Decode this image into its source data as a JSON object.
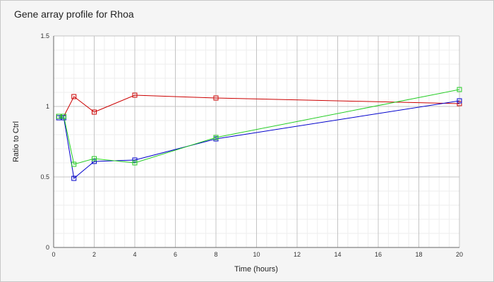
{
  "chart_data": {
    "type": "line",
    "title": "Gene array profile for Rhoa",
    "xlabel": "Time (hours)",
    "ylabel": "Ratio to Ctrl",
    "xlim": [
      0,
      20
    ],
    "ylim": [
      0,
      1.5
    ],
    "xticks": [
      0,
      2,
      4,
      6,
      8,
      10,
      12,
      14,
      16,
      18,
      20
    ],
    "yticks": [
      0,
      0.5,
      1,
      1.5
    ],
    "ytick_labels": [
      "0",
      "0.5",
      "1",
      "1.5"
    ],
    "grid": true,
    "series": [
      {
        "color": "#cc0000",
        "marker": "square",
        "x": [
          0.25,
          0.5,
          1,
          2,
          4,
          8,
          20
        ],
        "y": [
          0.93,
          0.93,
          1.07,
          0.96,
          1.08,
          1.06,
          1.02
        ]
      },
      {
        "color": "#0000cc",
        "marker": "square",
        "x": [
          0.25,
          0.5,
          1,
          2,
          4,
          8,
          20
        ],
        "y": [
          0.92,
          0.92,
          0.49,
          0.61,
          0.62,
          0.77,
          1.04
        ]
      },
      {
        "color": "#22cc22",
        "marker": "square",
        "x": [
          0.25,
          0.5,
          1,
          2,
          4,
          8,
          20
        ],
        "y": [
          0.93,
          0.93,
          0.59,
          0.63,
          0.6,
          0.78,
          1.12
        ]
      }
    ]
  }
}
